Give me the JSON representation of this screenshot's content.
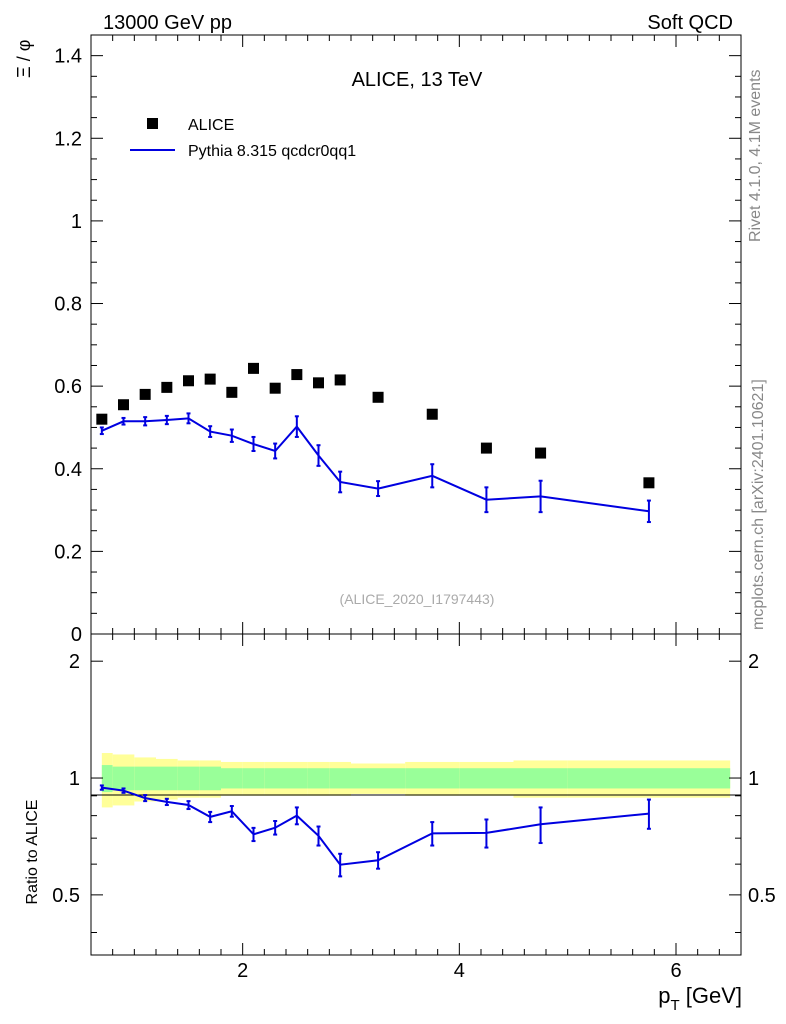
{
  "header": {
    "left": "13000 GeV pp",
    "right": "Soft QCD"
  },
  "side_labels": {
    "rivet": "Rivet 4.1.0,  4.1M events",
    "mcplots": "mcplots.cern.ch [arXiv:2401.10621]"
  },
  "chart_data": [
    {
      "type": "scatter",
      "title": "ALICE, 13 TeV",
      "watermark": "(ALICE_2020_I1797443)",
      "ylabel": "Ξ / φ",
      "xlim": [
        0.6,
        6.6
      ],
      "ylim": [
        0,
        1.45
      ],
      "y_ticks": [
        0,
        0.2,
        0.4,
        0.6,
        0.8,
        1,
        1.2,
        1.4
      ],
      "y_tick_labels": [
        "0",
        "0.2",
        "0.4",
        "0.6",
        "0.8",
        "1",
        "1.2",
        "1.4"
      ],
      "legend": [
        {
          "name": "ALICE",
          "style": "marker",
          "color": "#000000"
        },
        {
          "name": "Pythia 8.315 qcdcr0qq1",
          "style": "line",
          "color": "#0000e0"
        }
      ],
      "series": [
        {
          "name": "ALICE",
          "x": [
            0.7,
            0.9,
            1.1,
            1.3,
            1.5,
            1.7,
            1.9,
            2.1,
            2.3,
            2.5,
            2.7,
            2.9,
            3.25,
            3.75,
            4.25,
            4.75,
            5.75
          ],
          "y": [
            0.52,
            0.555,
            0.58,
            0.597,
            0.613,
            0.617,
            0.585,
            0.643,
            0.595,
            0.628,
            0.608,
            0.615,
            0.573,
            0.532,
            0.45,
            0.438,
            0.366
          ]
        },
        {
          "name": "Pythia 8.315 qcdcr0qq1",
          "x": [
            0.7,
            0.9,
            1.1,
            1.3,
            1.5,
            1.7,
            1.9,
            2.1,
            2.3,
            2.5,
            2.7,
            2.9,
            3.25,
            3.75,
            4.25,
            4.75,
            5.75
          ],
          "y": [
            0.492,
            0.515,
            0.515,
            0.518,
            0.522,
            0.49,
            0.48,
            0.46,
            0.443,
            0.502,
            0.432,
            0.368,
            0.352,
            0.383,
            0.325,
            0.333,
            0.297
          ],
          "yerr": [
            0.008,
            0.008,
            0.01,
            0.01,
            0.012,
            0.013,
            0.015,
            0.017,
            0.018,
            0.025,
            0.025,
            0.025,
            0.018,
            0.028,
            0.03,
            0.038,
            0.026
          ]
        }
      ]
    },
    {
      "type": "line",
      "ylabel": "Ratio to ALICE",
      "xlabel": "p_T [GeV]",
      "xlim": [
        0.6,
        6.6
      ],
      "ylim": [
        0.35,
        2.35
      ],
      "y_ticks": [
        0.5,
        1,
        2
      ],
      "y_tick_labels": [
        "0.5",
        "1",
        "2"
      ],
      "x_ticks": [
        2,
        4,
        6
      ],
      "x_tick_labels": [
        "2",
        "4",
        "6"
      ],
      "bands": {
        "edges": [
          0.6,
          0.8,
          1.0,
          1.2,
          1.4,
          1.6,
          1.8,
          2.0,
          2.2,
          2.4,
          2.6,
          2.8,
          3.0,
          3.5,
          4.0,
          4.5,
          5.0,
          6.5
        ],
        "inner": [
          0.08,
          0.07,
          0.07,
          0.07,
          0.07,
          0.07,
          0.06,
          0.06,
          0.06,
          0.06,
          0.06,
          0.06,
          0.06,
          0.06,
          0.06,
          0.06,
          0.06
        ],
        "outer": [
          0.16,
          0.15,
          0.13,
          0.12,
          0.11,
          0.11,
          0.1,
          0.1,
          0.1,
          0.1,
          0.1,
          0.1,
          0.09,
          0.1,
          0.1,
          0.11,
          0.11
        ],
        "inner_color": "#99ff99",
        "outer_color": "#ffff99"
      },
      "series": [
        {
          "name": "Pythia 8.315 qcdcr0qq1",
          "x": [
            0.7,
            0.9,
            1.1,
            1.3,
            1.5,
            1.7,
            1.9,
            2.1,
            2.3,
            2.5,
            2.7,
            2.9,
            3.25,
            3.75,
            4.25,
            4.75,
            5.75
          ],
          "y": [
            0.945,
            0.928,
            0.888,
            0.868,
            0.852,
            0.794,
            0.821,
            0.716,
            0.745,
            0.8,
            0.71,
            0.598,
            0.614,
            0.72,
            0.722,
            0.76,
            0.81
          ],
          "yerr": [
            0.012,
            0.012,
            0.016,
            0.016,
            0.02,
            0.024,
            0.026,
            0.028,
            0.03,
            0.04,
            0.04,
            0.04,
            0.03,
            0.05,
            0.06,
            0.08,
            0.07
          ]
        }
      ]
    }
  ]
}
